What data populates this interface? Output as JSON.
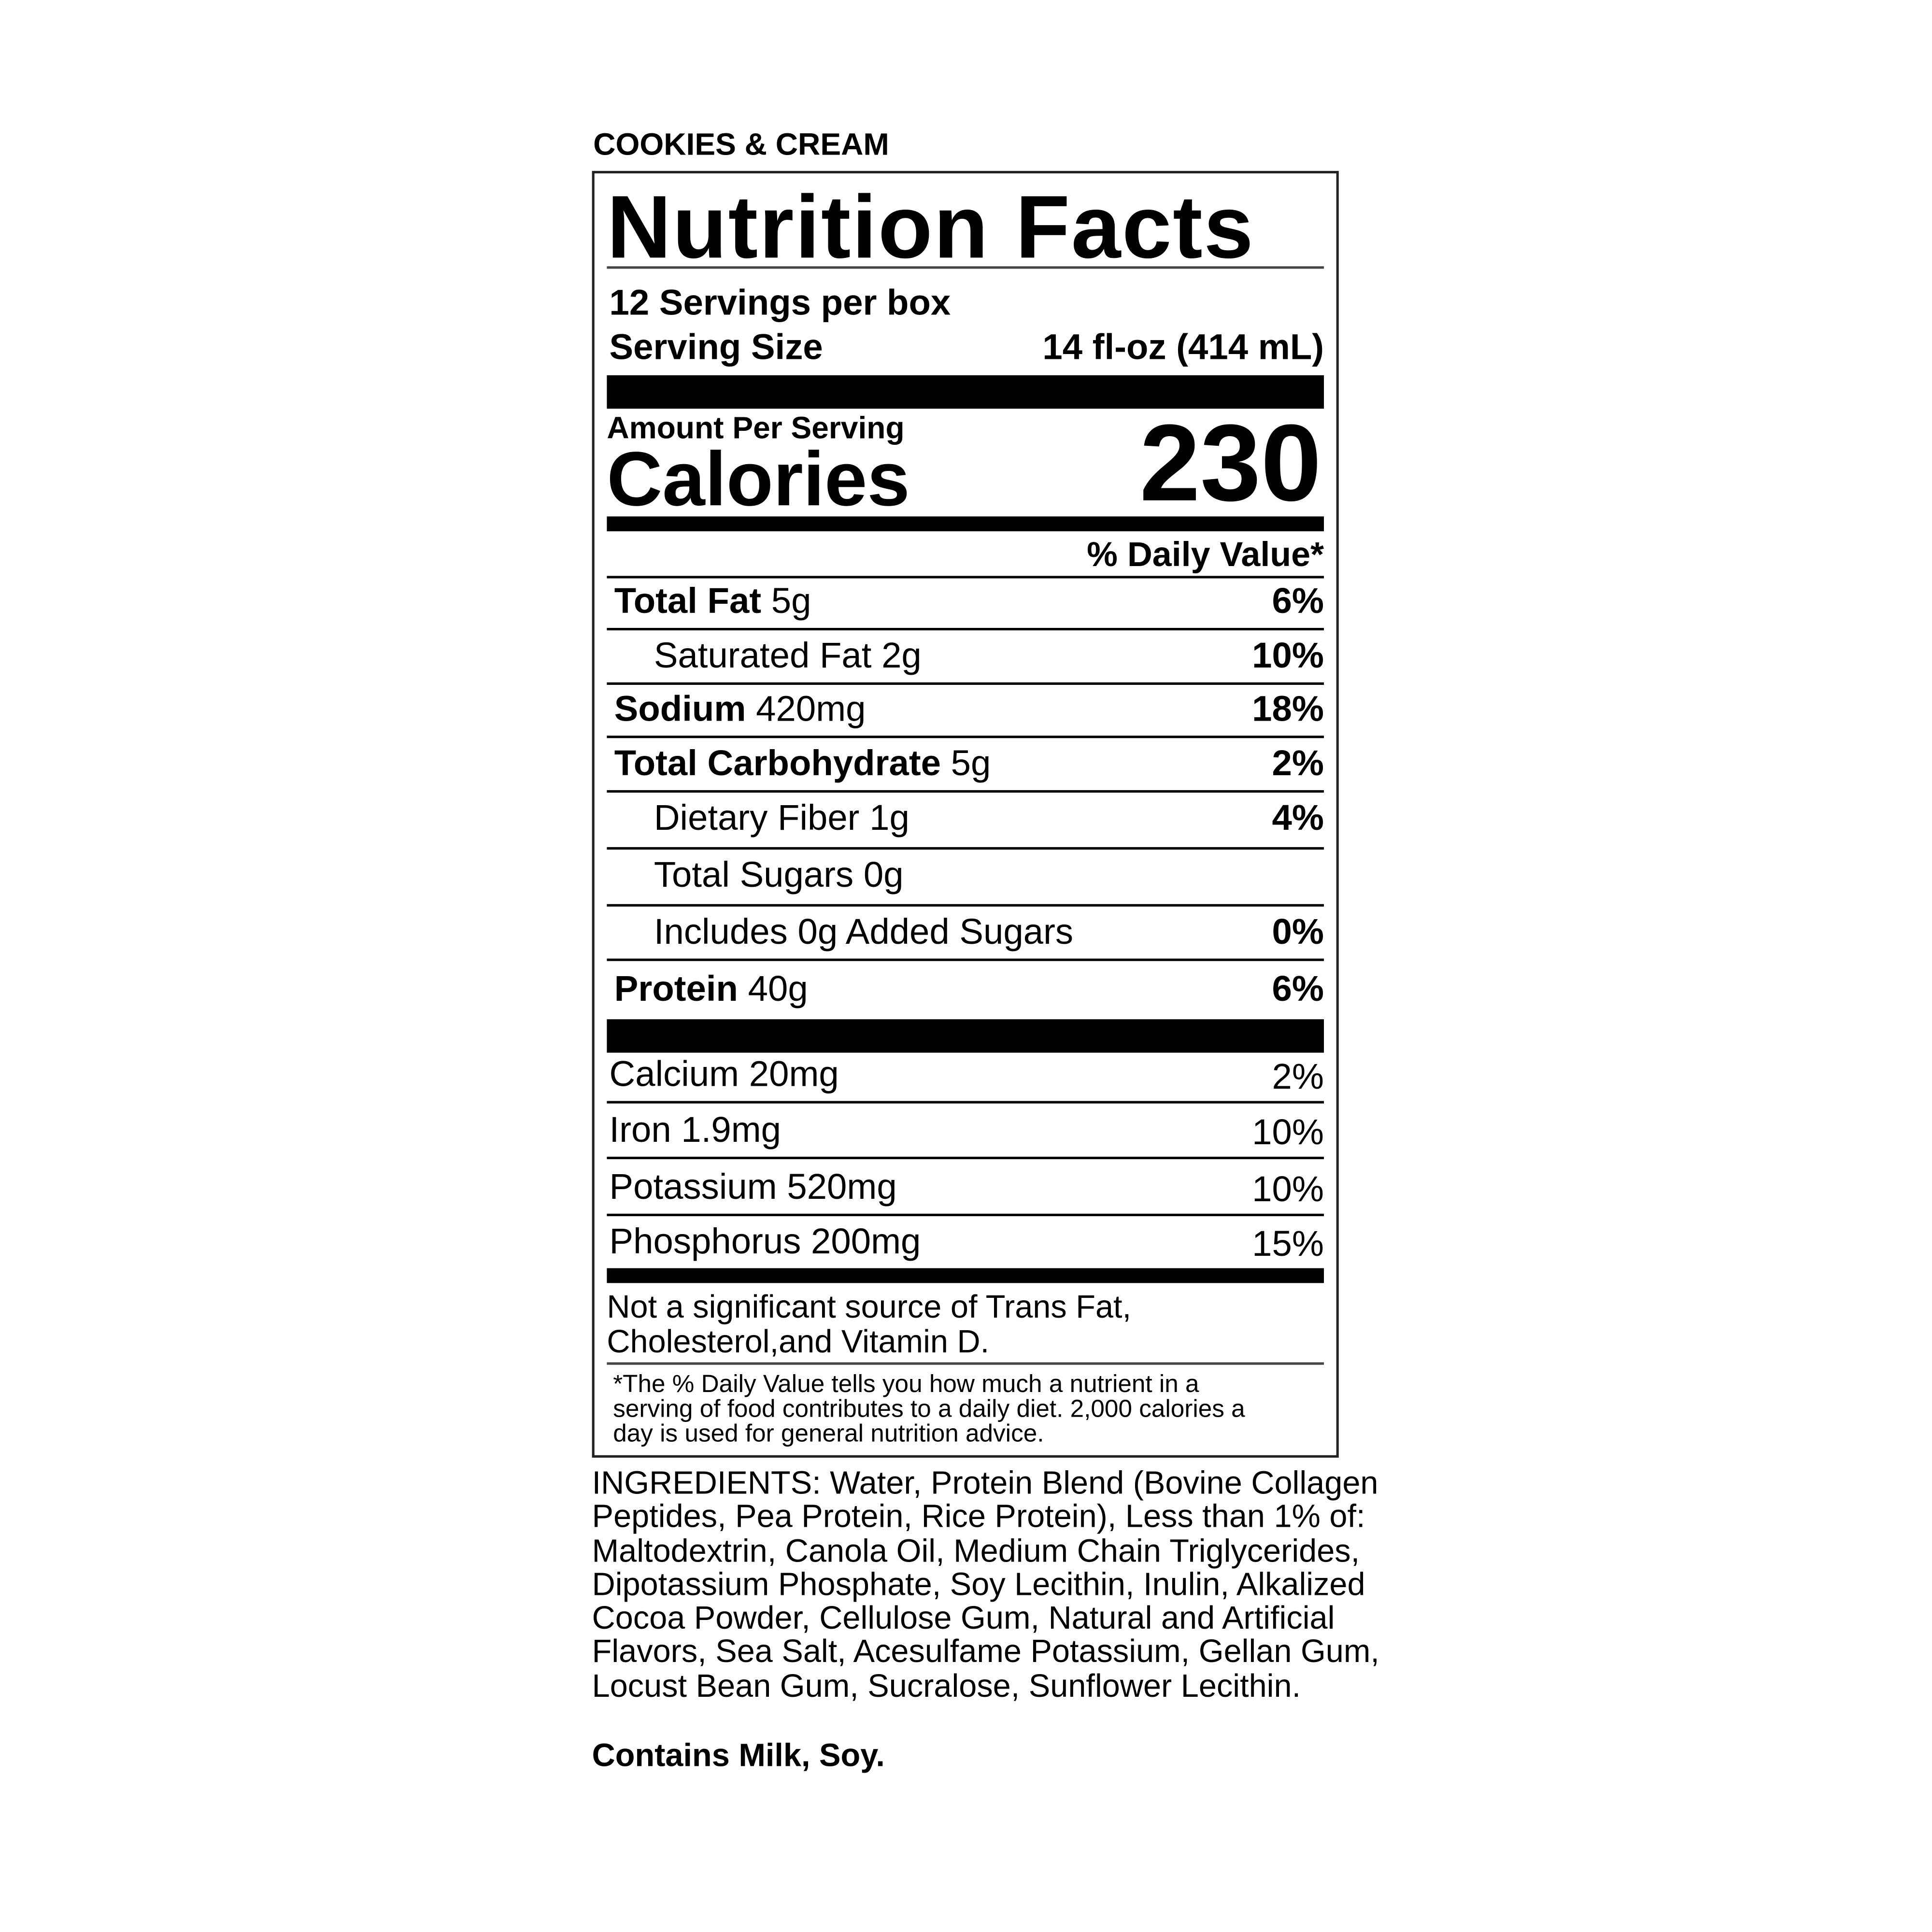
{
  "flavor": "COOKIES & CREAM",
  "label": {
    "title": "Nutrition Facts",
    "servings_per_container": "12 Servings per box",
    "serving_size_label": "Serving Size",
    "serving_size_value": "14 fl-oz (414 mL)",
    "amount_per_serving": "Amount Per Serving",
    "calories_label": "Calories",
    "calories_value": "230",
    "daily_value_header": "% Daily Value*",
    "nutrients": [
      {
        "name": "Total Fat",
        "amount": "5g",
        "dv": "6%"
      },
      {
        "name": "Saturated Fat",
        "amount": "2g",
        "dv": "10%"
      },
      {
        "name": "Sodium",
        "amount": "420mg",
        "dv": "18%"
      },
      {
        "name": "Total Carbohydrate",
        "amount": "5g",
        "dv": "2%"
      },
      {
        "name": "Dietary Fiber",
        "amount": "1g",
        "dv": "4%"
      },
      {
        "name": "Total Sugars",
        "amount": "0g",
        "dv": ""
      },
      {
        "name": "Includes 0g Added Sugars",
        "amount": "",
        "dv": "0%"
      },
      {
        "name": "Protein",
        "amount": "40g",
        "dv": "6%"
      }
    ],
    "minerals": [
      {
        "text": "Calcium 20mg",
        "dv": "2%"
      },
      {
        "text": "Iron 1.9mg",
        "dv": "10%"
      },
      {
        "text": "Potassium 520mg",
        "dv": "10%"
      },
      {
        "text": "Phosphorus 200mg",
        "dv": "15%"
      }
    ],
    "not_significant_line1": "Not a significant source of Trans Fat,",
    "not_significant_line2": "Cholesterol,and Vitamin D.",
    "footnote_line1": "*The % Daily Value tells you how much a nutrient in a",
    "footnote_line2": "serving of food contributes to a daily diet. 2,000 calories a",
    "footnote_line3": "day is used for general nutrition advice."
  },
  "ingredients": "INGREDIENTS: Water, Protein Blend (Bovine Collagen Peptides, Pea Protein, Rice Protein), Less than 1% of: Maltodextrin, Canola Oil, Medium Chain Triglycerides, Dipotassium Phosphate, Soy Lecithin, Inulin, Alkalized Cocoa Powder, Cellulose Gum, Natural and Artificial Flavors, Sea Salt, Acesulfame Potassium, Gellan Gum, Locust Bean Gum, Sucralose, Sunflower Lecithin.",
  "contains": "Contains Milk, Soy."
}
